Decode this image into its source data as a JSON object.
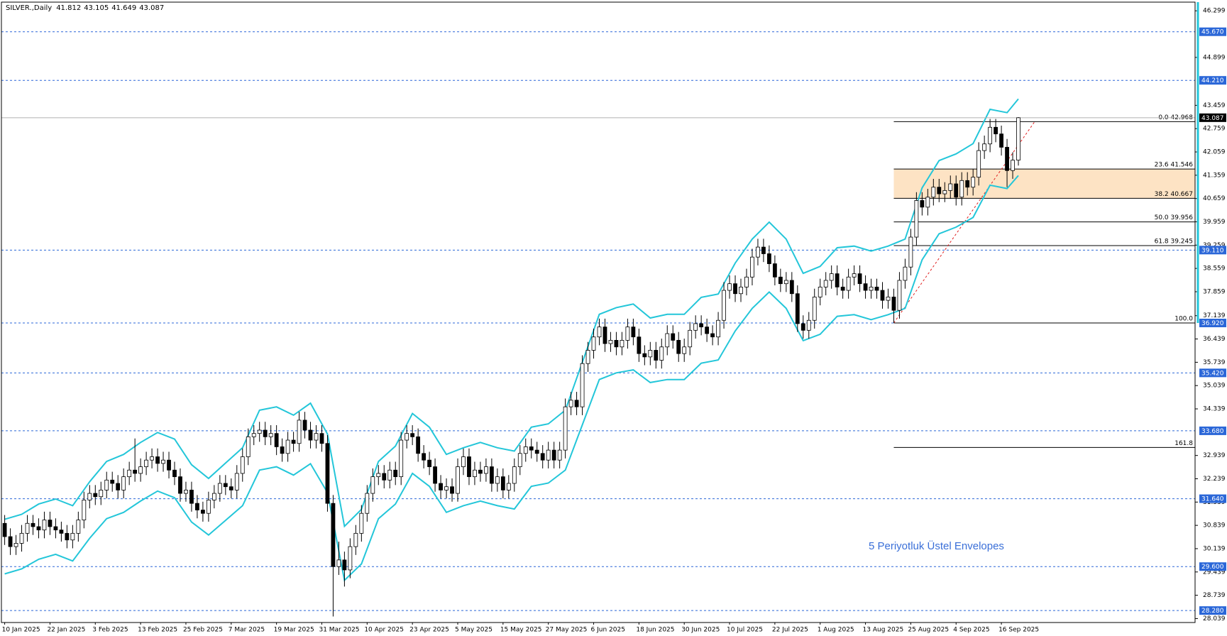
{
  "chart_data": {
    "type": "candlestick",
    "symbol": "SILVER.,Daily",
    "annotation": "5 Periyotluk Üstel Envelopes",
    "ylim": [
      27.92,
      46.56
    ],
    "yticks": [
      46.299,
      44.899,
      43.459,
      42.759,
      42.059,
      41.359,
      40.659,
      39.959,
      39.259,
      38.559,
      37.859,
      37.139,
      36.439,
      35.739,
      35.039,
      34.339,
      32.939,
      32.239,
      31.539,
      30.839,
      30.139,
      29.439,
      28.739,
      28.039
    ],
    "categories": [
      "10 Jan 2025",
      null,
      null,
      null,
      null,
      null,
      null,
      null,
      "22 Jan 2025",
      null,
      null,
      null,
      null,
      null,
      null,
      null,
      "3 Feb 2025",
      null,
      null,
      null,
      null,
      null,
      null,
      null,
      "13 Feb 2025",
      null,
      null,
      null,
      null,
      null,
      null,
      null,
      "25 Feb 2025",
      null,
      null,
      null,
      null,
      null,
      null,
      null,
      "7 Mar 2025",
      null,
      null,
      null,
      null,
      null,
      null,
      null,
      "19 Mar 2025",
      null,
      null,
      null,
      null,
      null,
      null,
      null,
      "31 Mar 2025",
      null,
      null,
      null,
      null,
      null,
      null,
      null,
      "10 Apr 2025",
      null,
      null,
      null,
      null,
      null,
      null,
      null,
      "23 Apr 2025",
      null,
      null,
      null,
      null,
      null,
      null,
      null,
      "5 May 2025",
      null,
      null,
      null,
      null,
      null,
      null,
      null,
      "15 May 2025",
      null,
      null,
      null,
      null,
      null,
      null,
      null,
      "27 May 2025",
      null,
      null,
      null,
      null,
      null,
      null,
      null,
      "6 Jun 2025",
      null,
      null,
      null,
      null,
      null,
      null,
      null,
      "18 Jun 2025",
      null,
      null,
      null,
      null,
      null,
      null,
      null,
      "30 Jun 2025",
      null,
      null,
      null,
      null,
      null,
      null,
      null,
      "10 Jul 2025",
      null,
      null,
      null,
      null,
      null,
      null,
      null,
      "22 Jul 2025",
      null,
      null,
      null,
      null,
      null,
      null,
      null,
      "1 Aug 2025",
      null,
      null,
      null,
      null,
      null,
      null,
      null,
      "13 Aug 2025",
      null,
      null,
      null,
      null,
      null,
      null,
      null,
      "25 Aug 2025",
      null,
      null,
      null,
      null,
      null,
      null,
      null,
      "4 Sep 2025",
      null,
      null,
      null,
      null,
      null,
      null,
      null,
      "16 Sep 2025",
      null,
      null,
      null
    ],
    "candles": {
      "bull_color": "#ffffff",
      "bear_color": "#000000",
      "open": [
        30.9,
        30.5,
        30.2,
        30.3,
        30.6,
        30.9,
        30.8,
        30.7,
        31.0,
        30.8,
        30.7,
        30.6,
        30.4,
        30.6,
        31.0,
        31.6,
        31.8,
        31.7,
        31.9,
        32.2,
        32.1,
        31.9,
        32.3,
        32.5,
        32.4,
        32.6,
        32.8,
        32.9,
        32.7,
        32.8,
        32.5,
        32.3,
        31.8,
        31.9,
        31.5,
        31.3,
        31.2,
        31.6,
        31.8,
        32.1,
        32.0,
        31.9,
        32.4,
        32.9,
        33.5,
        33.6,
        33.7,
        33.5,
        33.6,
        33.2,
        33.0,
        33.4,
        33.3,
        34.0,
        33.7,
        33.4,
        33.6,
        33.3,
        31.5,
        29.6,
        29.8,
        29.5,
        30.2,
        30.6,
        31.2,
        31.8,
        32.3,
        32.4,
        32.2,
        32.5,
        32.3,
        33.4,
        33.6,
        33.5,
        33.0,
        32.8,
        32.6,
        32.1,
        31.9,
        32.0,
        31.8,
        32.6,
        32.9,
        32.3,
        32.5,
        32.4,
        32.6,
        32.1,
        32.3,
        31.9,
        32.1,
        32.6,
        33.0,
        33.2,
        33.1,
        33.0,
        32.8,
        33.1,
        32.8,
        33.1,
        34.4,
        34.6,
        34.4,
        35.7,
        36.1,
        36.5,
        36.8,
        36.3,
        36.4,
        36.2,
        36.4,
        36.8,
        36.5,
        36.0,
        35.9,
        36.1,
        35.8,
        36.2,
        36.6,
        36.4,
        36.0,
        36.2,
        36.7,
        36.9,
        36.8,
        36.6,
        36.5,
        37.0,
        37.9,
        38.1,
        37.8,
        38.0,
        38.3,
        38.9,
        39.2,
        39.0,
        38.7,
        38.3,
        38.1,
        38.2,
        37.8,
        36.9,
        36.7,
        37.0,
        37.7,
        38.0,
        38.2,
        38.4,
        38.0,
        37.9,
        38.3,
        38.4,
        38.1,
        37.9,
        38.0,
        37.9,
        37.6,
        37.7,
        37.3,
        38.2,
        38.6,
        39.5,
        40.6,
        40.4,
        40.7,
        41.0,
        40.8,
        40.9,
        41.1,
        40.7,
        41.2,
        41.0,
        41.3,
        42.1,
        42.3,
        42.8,
        42.6,
        42.2,
        41.5,
        41.812
      ],
      "high": [
        31.15,
        30.75,
        30.55,
        30.85,
        31.15,
        31.15,
        31.05,
        31.25,
        31.25,
        31.05,
        30.95,
        30.85,
        30.85,
        31.25,
        31.85,
        32.05,
        32.05,
        32.15,
        32.45,
        32.45,
        32.35,
        32.55,
        32.75,
        33.45,
        32.85,
        33.05,
        33.15,
        33.15,
        33.05,
        33.05,
        32.75,
        32.55,
        32.15,
        32.15,
        31.75,
        31.55,
        31.85,
        32.05,
        32.35,
        32.35,
        32.25,
        32.65,
        33.15,
        33.75,
        33.85,
        33.95,
        33.95,
        33.85,
        33.85,
        33.45,
        33.65,
        33.65,
        34.25,
        34.25,
        33.95,
        33.85,
        33.85,
        33.55,
        31.75,
        30.35,
        30.05,
        30.45,
        30.85,
        31.45,
        32.05,
        32.55,
        32.65,
        32.65,
        32.75,
        32.75,
        33.65,
        33.85,
        33.85,
        33.75,
        33.25,
        33.05,
        32.85,
        32.35,
        32.25,
        32.25,
        32.85,
        33.15,
        33.15,
        32.75,
        32.75,
        32.85,
        32.85,
        32.55,
        32.55,
        32.35,
        32.85,
        33.25,
        33.45,
        33.45,
        33.35,
        33.25,
        33.35,
        33.35,
        33.35,
        34.65,
        34.85,
        34.85,
        35.95,
        36.35,
        36.75,
        37.05,
        37.05,
        36.65,
        36.65,
        36.65,
        37.05,
        37.05,
        36.75,
        36.25,
        36.35,
        36.35,
        36.45,
        36.85,
        36.85,
        36.65,
        36.45,
        36.95,
        37.15,
        37.15,
        37.05,
        36.85,
        37.25,
        38.15,
        38.35,
        38.35,
        38.25,
        38.55,
        39.15,
        39.45,
        39.45,
        39.25,
        38.95,
        38.55,
        38.45,
        38.45,
        38.05,
        37.15,
        37.25,
        37.95,
        38.25,
        38.45,
        38.65,
        38.65,
        38.25,
        38.55,
        38.65,
        38.65,
        38.35,
        38.25,
        38.25,
        38.15,
        37.95,
        37.95,
        38.45,
        38.85,
        39.75,
        40.85,
        40.85,
        40.95,
        41.25,
        41.25,
        41.15,
        41.35,
        41.35,
        41.45,
        41.45,
        41.55,
        42.35,
        42.55,
        43.05,
        43.05,
        42.85,
        42.45,
        42.05,
        43.105
      ],
      "low": [
        30.25,
        29.95,
        29.95,
        30.05,
        30.35,
        30.55,
        30.45,
        30.45,
        30.55,
        30.45,
        30.35,
        30.15,
        30.15,
        30.35,
        30.75,
        31.35,
        31.45,
        31.45,
        31.65,
        31.85,
        31.65,
        31.65,
        32.05,
        32.15,
        32.15,
        32.35,
        32.55,
        32.45,
        32.45,
        32.25,
        32.05,
        31.55,
        31.55,
        31.25,
        31.05,
        30.95,
        30.95,
        31.35,
        31.55,
        31.75,
        31.65,
        31.65,
        32.15,
        32.65,
        33.25,
        33.35,
        33.25,
        33.25,
        32.95,
        32.75,
        32.75,
        33.05,
        33.05,
        33.45,
        33.15,
        33.15,
        33.05,
        31.25,
        28.1,
        29.35,
        29.0,
        29.25,
        29.95,
        30.35,
        30.95,
        31.55,
        32.05,
        31.95,
        31.95,
        32.05,
        32.05,
        33.15,
        33.25,
        32.75,
        32.55,
        32.35,
        31.85,
        31.65,
        31.65,
        31.55,
        31.55,
        32.35,
        32.05,
        32.05,
        32.15,
        32.15,
        31.85,
        31.85,
        31.65,
        31.65,
        31.85,
        32.35,
        32.75,
        32.85,
        32.75,
        32.55,
        32.55,
        32.55,
        32.55,
        32.85,
        34.15,
        34.15,
        34.15,
        35.45,
        35.85,
        36.25,
        36.05,
        36.05,
        35.95,
        35.95,
        36.15,
        36.25,
        35.75,
        35.65,
        35.65,
        35.55,
        35.55,
        35.95,
        36.15,
        35.75,
        35.75,
        35.95,
        36.45,
        36.55,
        36.35,
        36.25,
        36.25,
        36.75,
        37.65,
        37.55,
        37.55,
        37.75,
        38.05,
        38.65,
        38.75,
        38.45,
        38.05,
        37.85,
        37.85,
        37.55,
        36.65,
        36.45,
        36.45,
        36.75,
        37.45,
        37.75,
        37.95,
        37.75,
        37.65,
        37.65,
        38.05,
        37.85,
        37.65,
        37.65,
        37.65,
        37.35,
        37.35,
        36.92,
        37.05,
        37.95,
        38.35,
        39.25,
        40.15,
        40.15,
        40.45,
        40.55,
        40.55,
        40.65,
        40.45,
        40.45,
        40.75,
        40.75,
        41.05,
        41.85,
        42.05,
        42.35,
        41.95,
        41.0,
        41.25,
        41.649
      ],
      "close": [
        30.5,
        30.2,
        30.3,
        30.6,
        30.9,
        30.8,
        30.7,
        31.0,
        30.8,
        30.7,
        30.6,
        30.4,
        30.6,
        31.0,
        31.6,
        31.8,
        31.7,
        31.9,
        32.2,
        32.1,
        31.9,
        32.3,
        32.5,
        32.4,
        32.6,
        32.8,
        32.9,
        32.7,
        32.8,
        32.5,
        32.3,
        31.8,
        31.9,
        31.5,
        31.3,
        31.2,
        31.6,
        31.8,
        32.1,
        32.0,
        31.9,
        32.4,
        32.9,
        33.5,
        33.6,
        33.7,
        33.5,
        33.6,
        33.2,
        33.0,
        33.4,
        33.3,
        34.0,
        33.7,
        33.4,
        33.6,
        33.3,
        31.5,
        29.6,
        29.8,
        29.5,
        30.2,
        30.6,
        31.2,
        31.8,
        32.3,
        32.4,
        32.2,
        32.5,
        32.3,
        33.4,
        33.6,
        33.5,
        33.0,
        32.8,
        32.6,
        32.1,
        31.9,
        32.0,
        31.8,
        32.6,
        32.9,
        32.3,
        32.5,
        32.4,
        32.6,
        32.1,
        32.3,
        31.9,
        32.1,
        32.6,
        33.0,
        33.2,
        33.1,
        33.0,
        32.8,
        33.1,
        32.8,
        33.1,
        34.4,
        34.6,
        34.4,
        35.7,
        36.1,
        36.5,
        36.8,
        36.3,
        36.4,
        36.2,
        36.4,
        36.8,
        36.5,
        36.0,
        35.9,
        36.1,
        35.8,
        36.2,
        36.6,
        36.4,
        36.0,
        36.2,
        36.7,
        36.9,
        36.8,
        36.6,
        36.5,
        37.0,
        37.9,
        38.1,
        37.8,
        38.0,
        38.3,
        38.9,
        39.2,
        39.0,
        38.7,
        38.3,
        38.1,
        38.2,
        37.8,
        36.9,
        36.7,
        37.0,
        37.7,
        38.0,
        38.2,
        38.4,
        38.0,
        37.9,
        38.3,
        38.4,
        38.1,
        37.9,
        38.0,
        37.9,
        37.6,
        37.7,
        37.3,
        38.2,
        38.6,
        39.5,
        40.6,
        40.4,
        40.7,
        41.0,
        40.8,
        40.9,
        41.1,
        40.7,
        41.2,
        41.0,
        41.3,
        42.1,
        42.3,
        42.8,
        42.6,
        42.2,
        41.5,
        41.812,
        43.087
      ]
    },
    "envelope": {
      "color": "#23c6d9",
      "x": [
        0,
        3,
        6,
        9,
        12,
        15,
        18,
        21,
        24,
        27,
        30,
        33,
        36,
        39,
        42,
        45,
        48,
        51,
        54,
        57,
        60,
        63,
        66,
        69,
        72,
        75,
        78,
        81,
        84,
        87,
        90,
        93,
        96,
        99,
        102,
        105,
        108,
        111,
        114,
        117,
        120,
        123,
        126,
        129,
        132,
        135,
        138,
        141,
        144,
        147,
        150,
        153,
        156,
        159,
        162,
        165,
        168,
        171,
        174,
        177,
        179
      ],
      "upper": [
        31.02,
        31.17,
        31.48,
        31.63,
        31.43,
        32.15,
        32.76,
        32.97,
        33.33,
        33.63,
        33.43,
        32.66,
        32.25,
        32.71,
        33.17,
        34.3,
        34.4,
        34.15,
        34.51,
        33.58,
        30.81,
        31.32,
        32.76,
        33.22,
        34.2,
        33.79,
        32.97,
        33.17,
        33.33,
        33.17,
        33.07,
        33.79,
        33.89,
        34.3,
        35.74,
        37.18,
        37.38,
        37.49,
        37.07,
        37.18,
        37.18,
        37.69,
        37.79,
        38.72,
        39.44,
        39.95,
        39.44,
        38.41,
        38.62,
        39.18,
        39.23,
        39.08,
        39.23,
        39.44,
        40.98,
        41.8,
        42.0,
        42.31,
        43.34,
        43.24,
        43.65
      ],
      "lower": [
        29.38,
        29.53,
        29.82,
        29.97,
        29.77,
        30.45,
        31.04,
        31.23,
        31.57,
        31.87,
        31.67,
        30.94,
        30.55,
        30.99,
        31.43,
        32.5,
        32.6,
        32.35,
        32.69,
        31.82,
        29.19,
        29.68,
        31.04,
        31.48,
        32.4,
        32.01,
        31.23,
        31.43,
        31.57,
        31.43,
        31.33,
        32.01,
        32.11,
        32.5,
        33.86,
        35.22,
        35.42,
        35.51,
        35.13,
        35.22,
        35.22,
        35.71,
        35.81,
        36.68,
        37.36,
        37.85,
        37.36,
        36.39,
        36.58,
        37.12,
        37.17,
        37.02,
        37.17,
        37.36,
        38.82,
        39.6,
        39.8,
        40.09,
        41.06,
        40.96,
        41.35
      ]
    },
    "levels": [
      {
        "value": 45.67,
        "label": "45.670"
      },
      {
        "value": 44.21,
        "label": "44.210"
      },
      {
        "value": 39.11,
        "label": "39.110"
      },
      {
        "value": 36.92,
        "label": "36.920"
      },
      {
        "value": 35.42,
        "label": "35.420"
      },
      {
        "value": 33.68,
        "label": "33.680"
      },
      {
        "value": 31.64,
        "label": "31.640"
      },
      {
        "value": 29.6,
        "label": "29.600"
      },
      {
        "value": 28.28,
        "label": "28.280"
      }
    ],
    "level_color": "#2b67d8",
    "fibonacci": [
      {
        "value": 42.968,
        "label": "0.0 42.968"
      },
      {
        "value": 41.546,
        "label": "23.6 41.546"
      },
      {
        "value": 40.667,
        "label": "38.2 40.667"
      },
      {
        "value": 39.956,
        "label": "50.0 39.956"
      },
      {
        "value": 39.245,
        "label": "61.8 39.245"
      },
      {
        "value": 36.92,
        "label": "100.0"
      },
      {
        "value": 33.18,
        "label": "161.8"
      }
    ],
    "fib_zone_color": "#fde3c4"
  }
}
